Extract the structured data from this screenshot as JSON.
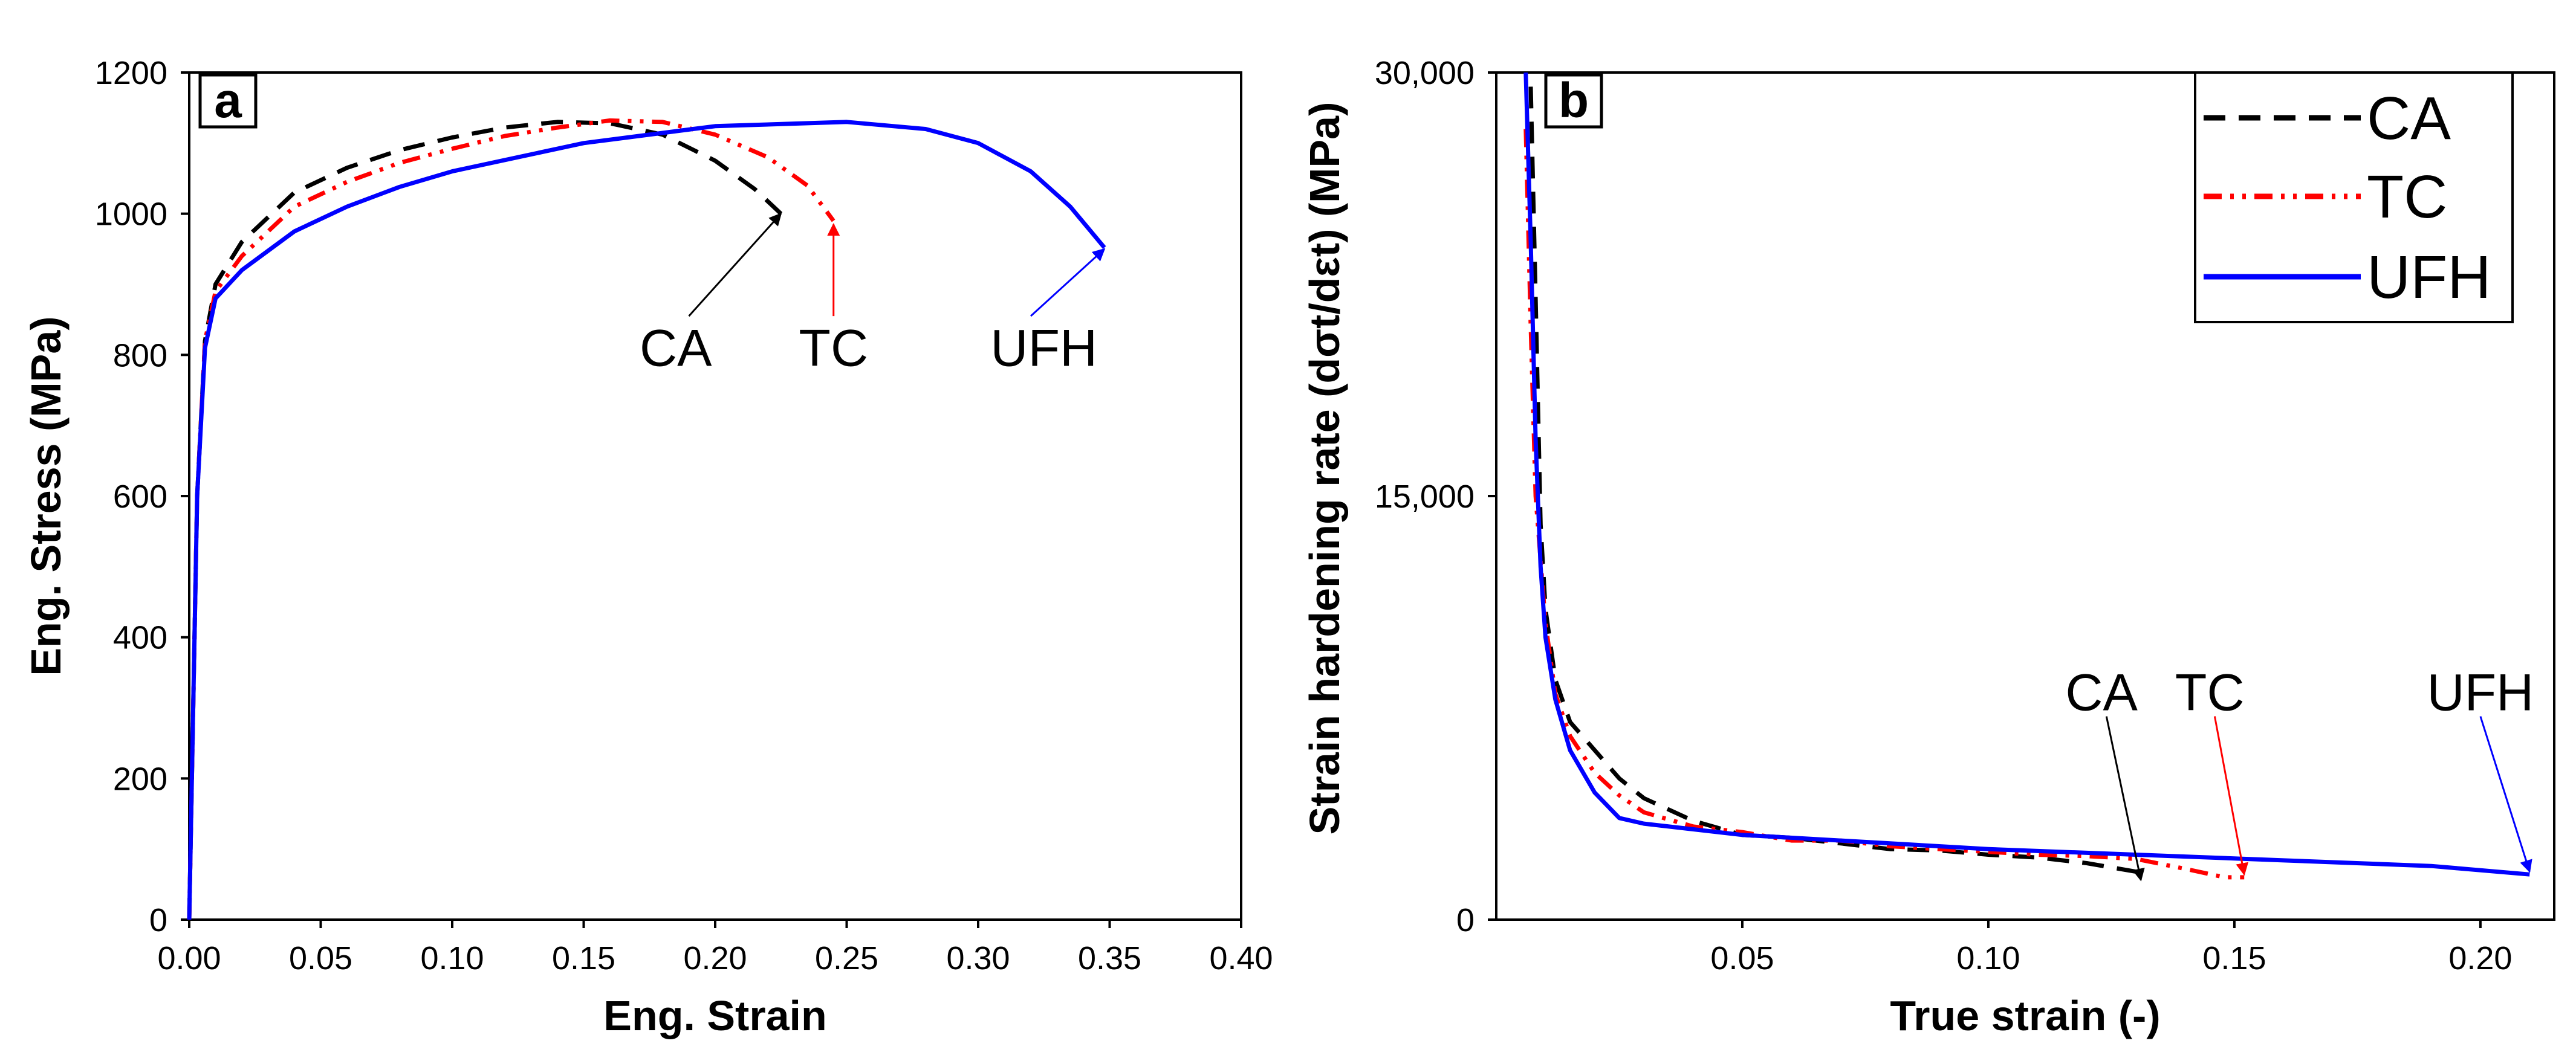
{
  "chart_data": [
    {
      "panel_label": "a",
      "type": "line",
      "xlabel": "Eng. Strain",
      "ylabel": "Eng. Stress (MPa)",
      "xlim": [
        0,
        0.4
      ],
      "ylim": [
        0,
        1200
      ],
      "x_ticks": [
        0,
        0.05,
        0.1,
        0.15,
        0.2,
        0.25,
        0.3,
        0.35,
        0.4
      ],
      "x_tick_labels": [
        "0.00",
        "0.05",
        "0.10",
        "0.15",
        "0.20",
        "0.25",
        "0.30",
        "0.35",
        "0.40"
      ],
      "y_ticks": [
        0,
        200,
        400,
        600,
        800,
        1000,
        1200
      ],
      "y_tick_labels": [
        "0",
        "200",
        "400",
        "600",
        "800",
        "1000",
        "1200"
      ],
      "series": [
        {
          "name": "CA",
          "color": "#000000",
          "style": "dash",
          "points": [
            [
              0,
              0
            ],
            [
              0.003,
              600
            ],
            [
              0.006,
              820
            ],
            [
              0.01,
              900
            ],
            [
              0.02,
              960
            ],
            [
              0.04,
              1030
            ],
            [
              0.06,
              1065
            ],
            [
              0.08,
              1090
            ],
            [
              0.1,
              1108
            ],
            [
              0.12,
              1122
            ],
            [
              0.14,
              1130
            ],
            [
              0.16,
              1128
            ],
            [
              0.18,
              1112
            ],
            [
              0.2,
              1075
            ],
            [
              0.215,
              1035
            ],
            [
              0.225,
              1000
            ]
          ]
        },
        {
          "name": "TC",
          "color": "#ff0000",
          "style": "dashdot",
          "points": [
            [
              0,
              0
            ],
            [
              0.003,
              600
            ],
            [
              0.006,
              820
            ],
            [
              0.01,
              890
            ],
            [
              0.02,
              940
            ],
            [
              0.04,
              1010
            ],
            [
              0.06,
              1045
            ],
            [
              0.08,
              1072
            ],
            [
              0.1,
              1092
            ],
            [
              0.12,
              1110
            ],
            [
              0.14,
              1122
            ],
            [
              0.16,
              1132
            ],
            [
              0.18,
              1130
            ],
            [
              0.2,
              1112
            ],
            [
              0.22,
              1080
            ],
            [
              0.235,
              1040
            ],
            [
              0.245,
              990
            ]
          ]
        },
        {
          "name": "UFH",
          "color": "#0000ff",
          "style": "solid",
          "points": [
            [
              0,
              0
            ],
            [
              0.003,
              600
            ],
            [
              0.006,
              810
            ],
            [
              0.01,
              880
            ],
            [
              0.02,
              920
            ],
            [
              0.04,
              975
            ],
            [
              0.06,
              1010
            ],
            [
              0.08,
              1038
            ],
            [
              0.1,
              1060
            ],
            [
              0.15,
              1100
            ],
            [
              0.2,
              1124
            ],
            [
              0.25,
              1130
            ],
            [
              0.28,
              1120
            ],
            [
              0.3,
              1100
            ],
            [
              0.32,
              1060
            ],
            [
              0.335,
              1010
            ],
            [
              0.348,
              952
            ]
          ]
        }
      ],
      "annotations": [
        {
          "text": "CA",
          "color": "#000000",
          "text_at": [
            0.185,
            800
          ],
          "arrow_tail": [
            0.19,
            855
          ],
          "arrow_head": [
            0.225,
            1000
          ]
        },
        {
          "text": "TC",
          "color": "#ff0000",
          "text_at": [
            0.245,
            800
          ],
          "arrow_tail": [
            0.245,
            855
          ],
          "arrow_head": [
            0.245,
            985
          ]
        },
        {
          "text": "UFH",
          "color": "#0000ff",
          "text_at": [
            0.325,
            800
          ],
          "arrow_tail": [
            0.32,
            855
          ],
          "arrow_head": [
            0.348,
            950
          ]
        }
      ]
    },
    {
      "panel_label": "b",
      "type": "line",
      "xlabel": "True strain (-)",
      "ylabel": "Strain hardening rate (dσt/dεt) (MPa)",
      "xlim": [
        0,
        0.215
      ],
      "ylim": [
        0,
        30000
      ],
      "x_ticks": [
        0.05,
        0.1,
        0.15,
        0.2
      ],
      "x_tick_labels": [
        "0.05",
        "0.10",
        "0.15",
        "0.20"
      ],
      "y_ticks": [
        0,
        15000,
        30000
      ],
      "y_tick_labels": [
        "0",
        "15,000",
        "30,000"
      ],
      "legend_position": "top-right",
      "series": [
        {
          "name": "CA",
          "color": "#000000",
          "style": "dash",
          "points": [
            [
              0.007,
              29500
            ],
            [
              0.008,
              22000
            ],
            [
              0.009,
              14000
            ],
            [
              0.01,
              11000
            ],
            [
              0.012,
              8500
            ],
            [
              0.015,
              7000
            ],
            [
              0.02,
              6000
            ],
            [
              0.025,
              5000
            ],
            [
              0.03,
              4300
            ],
            [
              0.04,
              3500
            ],
            [
              0.05,
              3000
            ],
            [
              0.06,
              2900
            ],
            [
              0.07,
              2700
            ],
            [
              0.08,
              2500
            ],
            [
              0.09,
              2450
            ],
            [
              0.1,
              2300
            ],
            [
              0.11,
              2200
            ],
            [
              0.12,
              2000
            ],
            [
              0.13,
              1700
            ],
            [
              0.132,
              1500
            ]
          ]
        },
        {
          "name": "TC",
          "color": "#ff0000",
          "style": "dashdot",
          "points": [
            [
              0.006,
              28000
            ],
            [
              0.007,
              21000
            ],
            [
              0.008,
              15000
            ],
            [
              0.01,
              10500
            ],
            [
              0.012,
              8000
            ],
            [
              0.015,
              6500
            ],
            [
              0.02,
              5200
            ],
            [
              0.025,
              4400
            ],
            [
              0.03,
              3800
            ],
            [
              0.04,
              3300
            ],
            [
              0.05,
              3100
            ],
            [
              0.06,
              2800
            ],
            [
              0.07,
              2800
            ],
            [
              0.08,
              2600
            ],
            [
              0.09,
              2500
            ],
            [
              0.1,
              2400
            ],
            [
              0.11,
              2300
            ],
            [
              0.12,
              2250
            ],
            [
              0.13,
              2150
            ],
            [
              0.14,
              1800
            ],
            [
              0.148,
              1500
            ],
            [
              0.152,
              1500
            ]
          ]
        },
        {
          "name": "UFH",
          "color": "#0000ff",
          "style": "solid",
          "points": [
            [
              0.006,
              30000
            ],
            [
              0.007,
              24000
            ],
            [
              0.008,
              17000
            ],
            [
              0.009,
              12500
            ],
            [
              0.01,
              10000
            ],
            [
              0.012,
              7800
            ],
            [
              0.015,
              6000
            ],
            [
              0.02,
              4500
            ],
            [
              0.025,
              3600
            ],
            [
              0.03,
              3400
            ],
            [
              0.05,
              3000
            ],
            [
              0.08,
              2700
            ],
            [
              0.1,
              2500
            ],
            [
              0.13,
              2300
            ],
            [
              0.16,
              2100
            ],
            [
              0.19,
              1900
            ],
            [
              0.21,
              1600
            ]
          ]
        }
      ],
      "annotations": [
        {
          "text": "CA",
          "color": "#000000",
          "text_at": [
            0.123,
            7800
          ],
          "arrow_tail": [
            0.124,
            7200
          ],
          "arrow_head": [
            0.131,
            1400
          ]
        },
        {
          "text": "TC",
          "color": "#ff0000",
          "text_at": [
            0.145,
            7800
          ],
          "arrow_tail": [
            0.146,
            7200
          ],
          "arrow_head": [
            0.152,
            1600
          ]
        },
        {
          "text": "UFH",
          "color": "#0000ff",
          "text_at": [
            0.2,
            7800
          ],
          "arrow_tail": [
            0.2,
            7200
          ],
          "arrow_head": [
            0.21,
            1700
          ]
        }
      ]
    }
  ]
}
